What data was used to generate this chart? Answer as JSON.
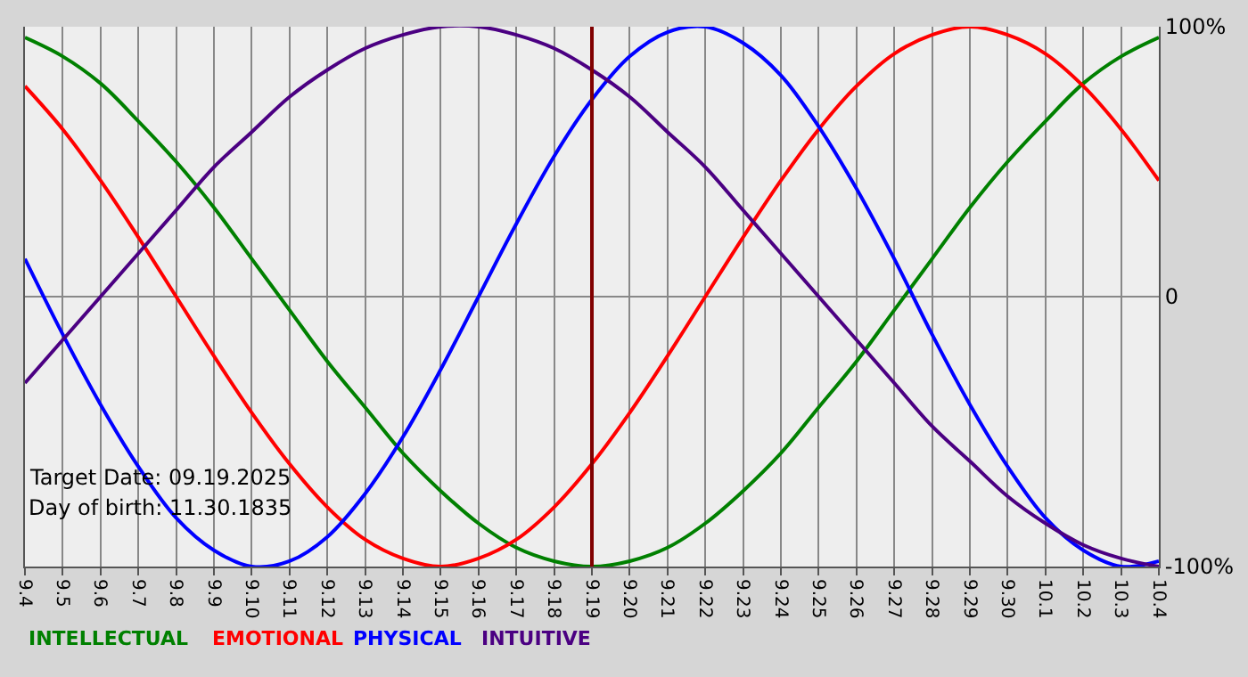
{
  "chart_data": {
    "type": "line",
    "categories": [
      "9.4",
      "9.5",
      "9.6",
      "9.7",
      "9.8",
      "9.9",
      "9.10",
      "9.11",
      "9.12",
      "9.13",
      "9.14",
      "9.15",
      "9.16",
      "9.17",
      "9.18",
      "9.19",
      "9.20",
      "9.21",
      "9.22",
      "9.23",
      "9.24",
      "9.25",
      "9.26",
      "9.27",
      "9.28",
      "9.29",
      "9.30",
      "10.1",
      "10.2",
      "10.3",
      "10.4"
    ],
    "series": [
      {
        "name": "INTELLECTUAL",
        "color": "#008000",
        "values": [
          96,
          89,
          79,
          65,
          50,
          33,
          14,
          -5,
          -24,
          -41,
          -58,
          -72,
          -84,
          -93,
          -98,
          -100,
          -98,
          -93,
          -84,
          -72,
          -58,
          -41,
          -24,
          -5,
          14,
          33,
          50,
          65,
          79,
          89,
          96
        ]
      },
      {
        "name": "EMOTIONAL",
        "color": "#ff0000",
        "values": [
          78,
          62,
          43,
          22,
          0,
          -22,
          -43,
          -62,
          -78,
          -90,
          -97,
          -100,
          -97,
          -90,
          -78,
          -62,
          -43,
          -22,
          0,
          22,
          43,
          62,
          78,
          90,
          97,
          100,
          97,
          90,
          78,
          62,
          43
        ]
      },
      {
        "name": "PHYSICAL",
        "color": "#0000ff",
        "values": [
          14,
          -14,
          -40,
          -63,
          -82,
          -94,
          -100,
          -98,
          -89,
          -73,
          -52,
          -27,
          0,
          27,
          52,
          73,
          89,
          98,
          100,
          94,
          82,
          63,
          40,
          14,
          -14,
          -40,
          -63,
          -82,
          -94,
          -100,
          -98
        ]
      },
      {
        "name": "INTUITIVE",
        "color": "#4b0082",
        "values": [
          -32,
          -16,
          0,
          16,
          32,
          48,
          61,
          74,
          84,
          92,
          97,
          100,
          100,
          97,
          92,
          84,
          74,
          61,
          48,
          32,
          16,
          0,
          -16,
          -32,
          -48,
          -61,
          -74,
          -84,
          -92,
          -97,
          -100
        ]
      }
    ],
    "ylim": [
      -100,
      100
    ],
    "yticks": [
      {
        "value": 100,
        "label": "100%"
      },
      0,
      {
        "value": -100,
        "label": "-100%"
      }
    ],
    "ref_lines": [
      {
        "axis": "x",
        "value": "9.19",
        "color": "#800000"
      }
    ],
    "annotations": [
      "Target Date: 09.19.2025",
      "Day of birth: 11.30.1835"
    ],
    "grid": true,
    "marker": "none",
    "line_style": "solid"
  }
}
